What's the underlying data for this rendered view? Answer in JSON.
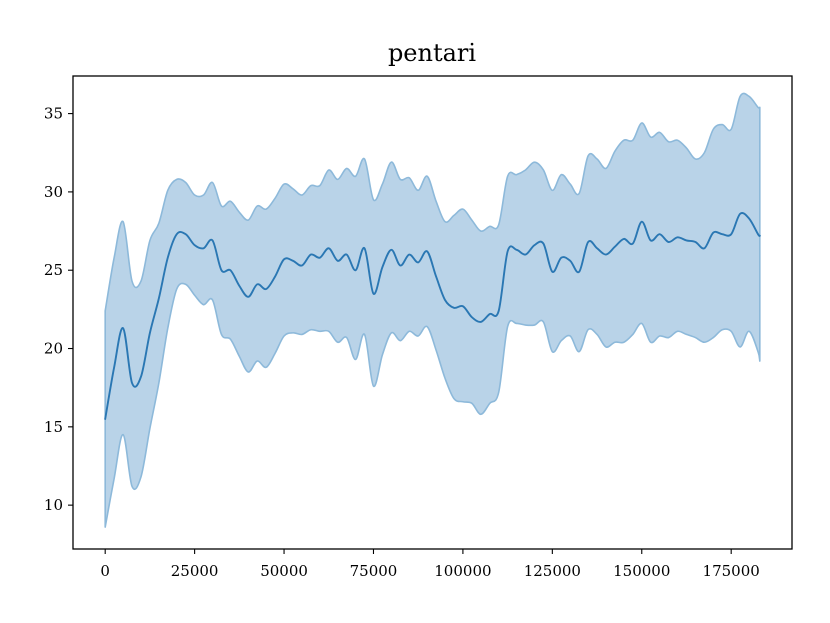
{
  "chart_data": {
    "type": "line",
    "title": "pentari",
    "xlabel": "",
    "ylabel": "",
    "xlim": [
      -9000,
      192000
    ],
    "ylim": [
      7.2,
      37.4
    ],
    "xticks": [
      0,
      25000,
      50000,
      75000,
      100000,
      125000,
      150000,
      175000
    ],
    "xtick_labels": [
      "0",
      "25000",
      "50000",
      "75000",
      "100000",
      "125000",
      "150000",
      "175000"
    ],
    "yticks": [
      10,
      15,
      20,
      25,
      30,
      35
    ],
    "ytick_labels": [
      "10",
      "15",
      "20",
      "25",
      "30",
      "35"
    ],
    "grid": false,
    "legend": false,
    "line_color": "#2a77b3",
    "band_color": "#b9d3e8",
    "band_edge_color": "#8db9da",
    "x": [
      0,
      2500,
      5000,
      7500,
      10000,
      12500,
      15000,
      17500,
      20000,
      22500,
      25000,
      27500,
      30000,
      32500,
      35000,
      37500,
      40000,
      42500,
      45000,
      47500,
      50000,
      52500,
      55000,
      57500,
      60000,
      62500,
      65000,
      67500,
      70000,
      72500,
      75000,
      77500,
      80000,
      82500,
      85000,
      87500,
      90000,
      92500,
      95000,
      97500,
      100000,
      102500,
      105000,
      107500,
      110000,
      112500,
      115000,
      117500,
      120000,
      122500,
      125000,
      127500,
      130000,
      132500,
      135000,
      137500,
      140000,
      142500,
      145000,
      147500,
      150000,
      152500,
      155000,
      157500,
      160000,
      162500,
      165000,
      167500,
      170000,
      172500,
      175000,
      177500,
      180000,
      182500,
      183000
    ],
    "mean": [
      15.5,
      18.8,
      21.3,
      17.8,
      18.2,
      21.0,
      23.2,
      25.8,
      27.3,
      27.3,
      26.6,
      26.4,
      26.9,
      25.0,
      25.0,
      24.0,
      23.3,
      24.1,
      23.8,
      24.6,
      25.7,
      25.6,
      25.3,
      26.0,
      25.8,
      26.4,
      25.6,
      26.0,
      25.0,
      26.4,
      23.5,
      25.2,
      26.3,
      25.3,
      26.0,
      25.5,
      26.2,
      24.6,
      23.1,
      22.6,
      22.7,
      22.0,
      21.7,
      22.2,
      22.4,
      26.2,
      26.3,
      26.0,
      26.6,
      26.7,
      24.9,
      25.8,
      25.6,
      24.9,
      26.8,
      26.4,
      26.0,
      26.5,
      27.0,
      26.7,
      28.1,
      26.9,
      27.3,
      26.8,
      27.1,
      26.9,
      26.8,
      26.4,
      27.4,
      27.3,
      27.3,
      28.6,
      28.3,
      27.3,
      27.2
    ],
    "upper": [
      22.4,
      25.8,
      28.1,
      24.3,
      24.3,
      26.9,
      28.0,
      30.1,
      30.8,
      30.6,
      29.8,
      29.8,
      30.6,
      29.1,
      29.4,
      28.7,
      28.2,
      29.1,
      28.9,
      29.6,
      30.5,
      30.2,
      29.8,
      30.4,
      30.4,
      31.4,
      30.8,
      31.5,
      31.0,
      32.1,
      29.5,
      30.5,
      31.9,
      30.8,
      30.9,
      30.1,
      31.0,
      29.4,
      28.1,
      28.5,
      28.9,
      28.2,
      27.5,
      27.8,
      27.9,
      31.0,
      31.1,
      31.4,
      31.9,
      31.4,
      30.1,
      31.1,
      30.5,
      29.9,
      32.3,
      32.1,
      31.5,
      32.6,
      33.3,
      33.3,
      34.4,
      33.5,
      33.8,
      33.2,
      33.3,
      32.8,
      32.1,
      32.5,
      34.0,
      34.3,
      34.0,
      36.1,
      36.1,
      35.4,
      35.4
    ],
    "lower": [
      8.6,
      11.7,
      14.5,
      11.2,
      11.8,
      14.9,
      17.8,
      21.3,
      23.8,
      24.1,
      23.4,
      22.8,
      23.1,
      20.9,
      20.6,
      19.5,
      18.5,
      19.2,
      18.8,
      19.7,
      20.8,
      21.0,
      20.9,
      21.2,
      21.1,
      21.1,
      20.4,
      20.7,
      19.3,
      20.9,
      17.6,
      19.6,
      21.0,
      20.5,
      21.1,
      20.8,
      21.4,
      19.9,
      18.1,
      16.8,
      16.6,
      16.5,
      15.8,
      16.5,
      17.2,
      21.4,
      21.6,
      21.5,
      21.5,
      21.7,
      19.8,
      20.5,
      20.8,
      19.8,
      21.2,
      20.9,
      20.1,
      20.4,
      20.4,
      20.9,
      21.6,
      20.4,
      20.8,
      20.7,
      21.1,
      20.9,
      20.7,
      20.4,
      20.7,
      21.2,
      21.1,
      20.1,
      21.1,
      19.8,
      19.2
    ]
  }
}
